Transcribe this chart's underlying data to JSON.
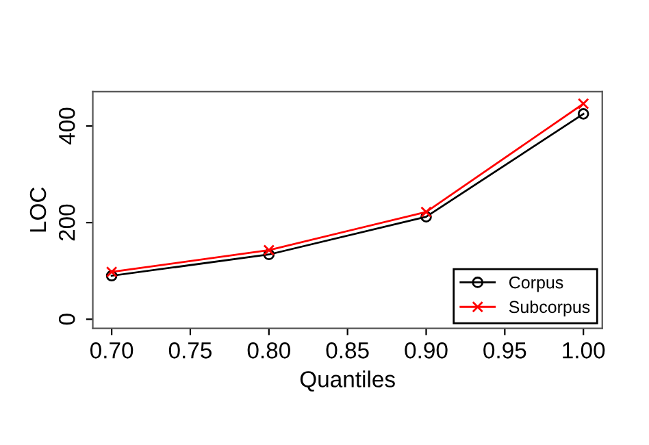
{
  "chart_data": {
    "type": "line",
    "xlabel": "Quantiles",
    "ylabel": "LOC",
    "x": [
      0.7,
      0.8,
      0.9,
      1.0
    ],
    "series": [
      {
        "name": "Corpus",
        "color": "#000000",
        "marker": "circle",
        "values": [
          90,
          134,
          212,
          425
        ]
      },
      {
        "name": "Subcorpus",
        "color": "#ff0000",
        "marker": "cross",
        "values": [
          98,
          143,
          222,
          446
        ]
      }
    ],
    "xlim": [
      0.688,
      1.012
    ],
    "xticks": [
      {
        "value": 0.7,
        "label": "0.70"
      },
      {
        "value": 0.75,
        "label": "0.75"
      },
      {
        "value": 0.8,
        "label": "0.80"
      },
      {
        "value": 0.85,
        "label": "0.85"
      },
      {
        "value": 0.9,
        "label": "0.90"
      },
      {
        "value": 0.95,
        "label": "0.95"
      },
      {
        "value": 1.0,
        "label": "1.00"
      }
    ],
    "ylim": [
      -19,
      471
    ],
    "yticks": [
      0,
      200,
      400
    ],
    "grid": false,
    "legend": "bottom right",
    "line_style": "solid"
  }
}
